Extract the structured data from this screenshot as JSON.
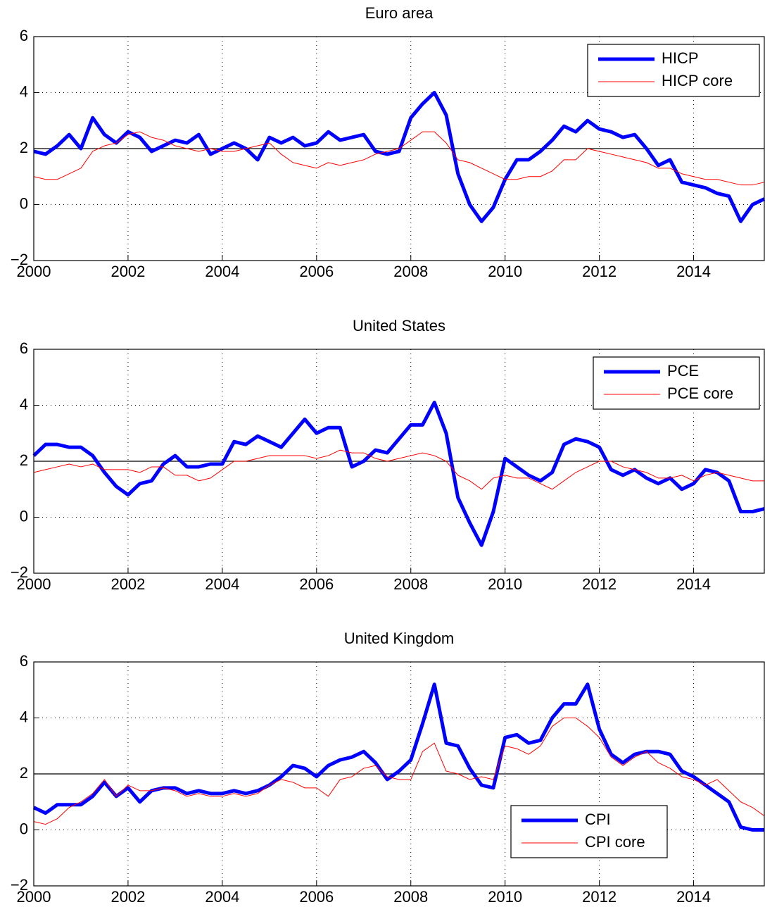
{
  "chart_data": [
    {
      "type": "line",
      "title": "Euro area",
      "xlim": [
        2000,
        2015.5
      ],
      "ylim": [
        -2,
        6
      ],
      "xticks": [
        2000,
        2002,
        2004,
        2006,
        2008,
        2010,
        2012,
        2014
      ],
      "yticks": [
        {
          "value": -2,
          "label": "−2"
        },
        0,
        2,
        4,
        6
      ],
      "hline": 2,
      "grid": true,
      "legend": "upper right",
      "x": [
        2000,
        2000.25,
        2000.5,
        2000.75,
        2001,
        2001.25,
        2001.5,
        2001.75,
        2002,
        2002.25,
        2002.5,
        2002.75,
        2003,
        2003.25,
        2003.5,
        2003.75,
        2004,
        2004.25,
        2004.5,
        2004.75,
        2005,
        2005.25,
        2005.5,
        2005.75,
        2006,
        2006.25,
        2006.5,
        2006.75,
        2007,
        2007.25,
        2007.5,
        2007.75,
        2008,
        2008.25,
        2008.5,
        2008.75,
        2009,
        2009.25,
        2009.5,
        2009.75,
        2010,
        2010.25,
        2010.5,
        2010.75,
        2011,
        2011.25,
        2011.5,
        2011.75,
        2012,
        2012.25,
        2012.5,
        2012.75,
        2013,
        2013.25,
        2013.5,
        2013.75,
        2014,
        2014.25,
        2014.5,
        2014.75,
        2015,
        2015.25,
        2015.5
      ],
      "series": [
        {
          "name": "HICP",
          "color": "#0000ff",
          "width": 5,
          "values": [
            1.9,
            1.8,
            2.1,
            2.5,
            2.0,
            3.1,
            2.5,
            2.2,
            2.6,
            2.4,
            1.9,
            2.1,
            2.3,
            2.2,
            2.5,
            1.8,
            2.0,
            2.2,
            2.0,
            1.6,
            2.4,
            2.2,
            2.4,
            2.1,
            2.2,
            2.6,
            2.3,
            2.4,
            2.5,
            1.9,
            1.8,
            1.9,
            3.1,
            3.6,
            4.0,
            3.2,
            1.1,
            0.0,
            -0.6,
            -0.1,
            0.9,
            1.6,
            1.6,
            1.9,
            2.3,
            2.8,
            2.6,
            3.0,
            2.7,
            2.6,
            2.4,
            2.5,
            2.0,
            1.4,
            1.6,
            0.8,
            0.7,
            0.6,
            0.4,
            0.3,
            -0.6,
            0.0,
            0.2
          ]
        },
        {
          "name": "HICP core",
          "color": "#ff0000",
          "width": 1,
          "values": [
            1.0,
            0.9,
            0.9,
            1.1,
            1.3,
            1.9,
            2.1,
            2.2,
            2.5,
            2.6,
            2.4,
            2.3,
            2.1,
            2.0,
            1.9,
            2.0,
            1.9,
            1.9,
            2.0,
            2.1,
            2.2,
            1.8,
            1.5,
            1.4,
            1.3,
            1.5,
            1.4,
            1.5,
            1.6,
            1.8,
            1.9,
            2.0,
            2.3,
            2.6,
            2.6,
            2.2,
            1.6,
            1.5,
            1.3,
            1.1,
            0.9,
            0.9,
            1.0,
            1.0,
            1.2,
            1.6,
            1.6,
            2.0,
            1.9,
            1.8,
            1.7,
            1.6,
            1.5,
            1.3,
            1.3,
            1.1,
            1.0,
            0.9,
            0.9,
            0.8,
            0.7,
            0.7,
            0.8
          ]
        }
      ]
    },
    {
      "type": "line",
      "title": "United States",
      "xlim": [
        2000,
        2015.5
      ],
      "ylim": [
        -2,
        6
      ],
      "xticks": [
        2000,
        2002,
        2004,
        2006,
        2008,
        2010,
        2012,
        2014
      ],
      "yticks": [
        {
          "value": -2,
          "label": "−2"
        },
        0,
        2,
        4,
        6
      ],
      "hline": 2,
      "grid": true,
      "legend": "upper right",
      "x": [
        2000,
        2000.25,
        2000.5,
        2000.75,
        2001,
        2001.25,
        2001.5,
        2001.75,
        2002,
        2002.25,
        2002.5,
        2002.75,
        2003,
        2003.25,
        2003.5,
        2003.75,
        2004,
        2004.25,
        2004.5,
        2004.75,
        2005,
        2005.25,
        2005.5,
        2005.75,
        2006,
        2006.25,
        2006.5,
        2006.75,
        2007,
        2007.25,
        2007.5,
        2007.75,
        2008,
        2008.25,
        2008.5,
        2008.75,
        2009,
        2009.25,
        2009.5,
        2009.75,
        2010,
        2010.25,
        2010.5,
        2010.75,
        2011,
        2011.25,
        2011.5,
        2011.75,
        2012,
        2012.25,
        2012.5,
        2012.75,
        2013,
        2013.25,
        2013.5,
        2013.75,
        2014,
        2014.25,
        2014.5,
        2014.75,
        2015,
        2015.25,
        2015.5
      ],
      "series": [
        {
          "name": "PCE",
          "color": "#0000ff",
          "width": 5,
          "values": [
            2.2,
            2.6,
            2.6,
            2.5,
            2.5,
            2.2,
            1.6,
            1.1,
            0.8,
            1.2,
            1.3,
            1.9,
            2.2,
            1.8,
            1.8,
            1.9,
            1.9,
            2.7,
            2.6,
            2.9,
            2.7,
            2.5,
            3.0,
            3.5,
            3.0,
            3.2,
            3.2,
            1.8,
            2.0,
            2.4,
            2.3,
            2.8,
            3.3,
            3.3,
            4.1,
            3.0,
            0.7,
            -0.2,
            -1.0,
            0.2,
            2.1,
            1.8,
            1.5,
            1.3,
            1.6,
            2.6,
            2.8,
            2.7,
            2.5,
            1.7,
            1.5,
            1.7,
            1.4,
            1.2,
            1.4,
            1.0,
            1.2,
            1.7,
            1.6,
            1.3,
            0.2,
            0.2,
            0.3
          ]
        },
        {
          "name": "PCE core",
          "color": "#ff0000",
          "width": 1,
          "values": [
            1.6,
            1.7,
            1.8,
            1.9,
            1.8,
            1.9,
            1.7,
            1.7,
            1.7,
            1.6,
            1.8,
            1.8,
            1.5,
            1.5,
            1.3,
            1.4,
            1.7,
            2.0,
            2.0,
            2.1,
            2.2,
            2.2,
            2.2,
            2.2,
            2.1,
            2.2,
            2.4,
            2.3,
            2.3,
            2.1,
            2.0,
            2.1,
            2.2,
            2.3,
            2.2,
            2.0,
            1.5,
            1.3,
            1.0,
            1.4,
            1.5,
            1.4,
            1.4,
            1.2,
            1.0,
            1.3,
            1.6,
            1.8,
            2.0,
            2.0,
            1.8,
            1.7,
            1.6,
            1.4,
            1.4,
            1.5,
            1.3,
            1.5,
            1.6,
            1.5,
            1.4,
            1.3,
            1.3
          ]
        }
      ]
    },
    {
      "type": "line",
      "title": "United Kingdom",
      "xlim": [
        2000,
        2015.5
      ],
      "ylim": [
        -2,
        6
      ],
      "xticks": [
        2000,
        2002,
        2004,
        2006,
        2008,
        2010,
        2012,
        2014
      ],
      "yticks": [
        {
          "value": -2,
          "label": "−2"
        },
        0,
        2,
        4,
        6
      ],
      "hline": 2,
      "grid": true,
      "legend": "lower right",
      "x": [
        2000,
        2000.25,
        2000.5,
        2000.75,
        2001,
        2001.25,
        2001.5,
        2001.75,
        2002,
        2002.25,
        2002.5,
        2002.75,
        2003,
        2003.25,
        2003.5,
        2003.75,
        2004,
        2004.25,
        2004.5,
        2004.75,
        2005,
        2005.25,
        2005.5,
        2005.75,
        2006,
        2006.25,
        2006.5,
        2006.75,
        2007,
        2007.25,
        2007.5,
        2007.75,
        2008,
        2008.25,
        2008.5,
        2008.75,
        2009,
        2009.25,
        2009.5,
        2009.75,
        2010,
        2010.25,
        2010.5,
        2010.75,
        2011,
        2011.25,
        2011.5,
        2011.75,
        2012,
        2012.25,
        2012.5,
        2012.75,
        2013,
        2013.25,
        2013.5,
        2013.75,
        2014,
        2014.25,
        2014.5,
        2014.75,
        2015,
        2015.25,
        2015.5
      ],
      "series": [
        {
          "name": "CPI",
          "color": "#0000ff",
          "width": 5,
          "values": [
            0.8,
            0.6,
            0.9,
            0.9,
            0.9,
            1.2,
            1.7,
            1.2,
            1.5,
            1.0,
            1.4,
            1.5,
            1.5,
            1.3,
            1.4,
            1.3,
            1.3,
            1.4,
            1.3,
            1.4,
            1.6,
            1.9,
            2.3,
            2.2,
            1.9,
            2.3,
            2.5,
            2.6,
            2.8,
            2.4,
            1.8,
            2.1,
            2.5,
            3.8,
            5.2,
            3.1,
            3.0,
            2.2,
            1.6,
            1.5,
            3.3,
            3.4,
            3.1,
            3.2,
            4.0,
            4.5,
            4.5,
            5.2,
            3.6,
            2.7,
            2.4,
            2.7,
            2.8,
            2.8,
            2.7,
            2.1,
            1.9,
            1.6,
            1.3,
            1.0,
            0.1,
            0.0,
            0.0
          ]
        },
        {
          "name": "CPI core",
          "color": "#ff0000",
          "width": 1,
          "values": [
            0.3,
            0.2,
            0.4,
            0.8,
            1.0,
            1.3,
            1.8,
            1.2,
            1.6,
            1.4,
            1.4,
            1.5,
            1.4,
            1.2,
            1.3,
            1.2,
            1.2,
            1.3,
            1.2,
            1.3,
            1.6,
            1.8,
            1.7,
            1.5,
            1.5,
            1.2,
            1.8,
            1.9,
            2.2,
            2.3,
            1.9,
            1.8,
            1.8,
            2.8,
            3.1,
            2.1,
            2.0,
            1.8,
            1.9,
            1.8,
            3.0,
            2.9,
            2.7,
            3.0,
            3.7,
            4.0,
            4.0,
            3.7,
            3.3,
            2.6,
            2.3,
            2.6,
            2.8,
            2.4,
            2.2,
            1.9,
            1.8,
            1.6,
            1.8,
            1.4,
            1.0,
            0.8,
            0.5
          ]
        }
      ]
    }
  ]
}
